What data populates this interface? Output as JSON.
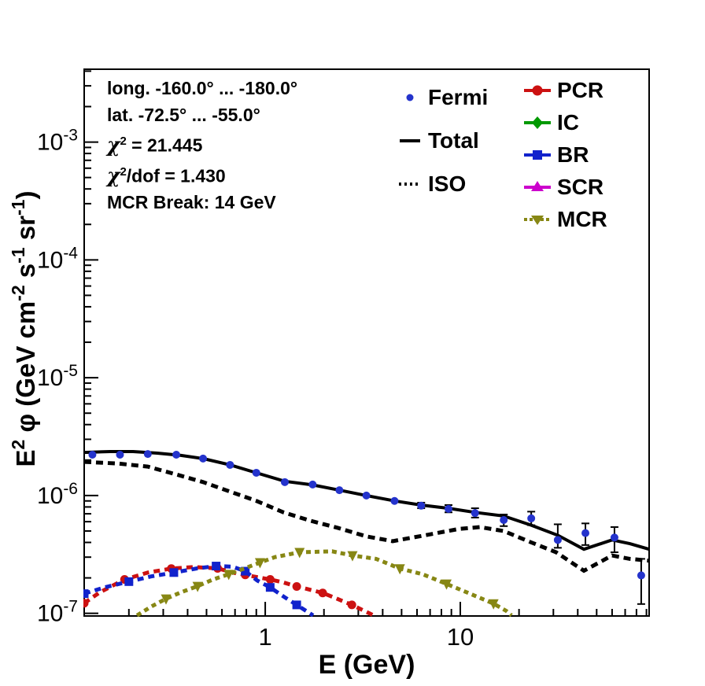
{
  "figure": {
    "background": "#ffffff",
    "stats": {
      "line1": "long. -160.0° ... -180.0°",
      "line2": "lat. -72.5° ... -55.0°",
      "chi2": {
        "sym": "χ",
        "sup": "2",
        "rest": " = 21.445"
      },
      "chi2dof": {
        "sym": "χ",
        "sup": "2",
        "rest": "/dof = 1.430"
      },
      "line5": "MCR Break: 14 GeV"
    }
  },
  "axes": {
    "x_title": "E (GeV)",
    "y_title_parts": [
      {
        "t": "E"
      },
      {
        "t": "2",
        "sup": true
      },
      {
        "t": " φ (GeV cm"
      },
      {
        "t": "-2",
        "sup": true
      },
      {
        "t": " s"
      },
      {
        "t": "-1",
        "sup": true
      },
      {
        "t": " sr"
      },
      {
        "t": "-1",
        "sup": true
      },
      {
        "t": ")"
      }
    ],
    "x_ticks": [
      {
        "v": 1,
        "label": "1"
      },
      {
        "v": 10,
        "label": "10"
      }
    ],
    "y_ticks": [
      {
        "v": 0.001,
        "base": "10",
        "exp": "-3"
      },
      {
        "v": 0.0001,
        "base": "10",
        "exp": "-4"
      },
      {
        "v": 1e-05,
        "base": "10",
        "exp": "-5"
      },
      {
        "v": 1e-06,
        "base": "10",
        "exp": "-6"
      },
      {
        "v": 1e-07,
        "base": "10",
        "exp": "-7"
      }
    ]
  },
  "chart_data": {
    "type": "line",
    "x_scale": "log",
    "y_scale": "log",
    "xlabel": "E (GeV)",
    "ylabel": "E^2 phi (GeV cm^-2 s^-1 sr^-1)",
    "xlim": [
      0.118,
      92.9
    ],
    "ylim": [
      9.5e-08,
      0.00415
    ],
    "grid": false,
    "legend_position": "top",
    "series": [
      {
        "name": "Fermi",
        "type": "scatter",
        "color": "#2433cc",
        "marker": "circle",
        "marker_size": 10,
        "line": "none",
        "points": [
          [
            0.13,
            2.22e-06,
            null,
            null
          ],
          [
            0.18,
            2.22e-06,
            null,
            null
          ],
          [
            0.25,
            2.25e-06,
            null,
            null
          ],
          [
            0.35,
            2.22e-06,
            null,
            null
          ],
          [
            0.48,
            2.06e-06,
            null,
            null
          ],
          [
            0.66,
            1.82e-06,
            null,
            null
          ],
          [
            0.9,
            1.56e-06,
            null,
            null
          ],
          [
            1.26,
            1.3e-06,
            null,
            null
          ],
          [
            1.75,
            1.24e-06,
            null,
            null
          ],
          [
            2.4,
            1.11e-06,
            null,
            null
          ],
          [
            3.3,
            1e-06,
            null,
            null
          ],
          [
            4.6,
            9e-07,
            null,
            null
          ],
          [
            6.3,
            8.2e-07,
            7.8e-07,
            8.7e-07
          ],
          [
            8.7,
            7.7e-07,
            7.2e-07,
            8.3e-07
          ],
          [
            11.9,
            7.1e-07,
            6.5e-07,
            7.8e-07
          ],
          [
            16.7,
            6.2e-07,
            5.5e-07,
            6.9e-07
          ],
          [
            23.1,
            6.4e-07,
            5.6e-07,
            7.3e-07
          ],
          [
            31.6,
            4.2e-07,
            3.6e-07,
            5.7e-07
          ],
          [
            43.8,
            4.8e-07,
            3.8e-07,
            5.8e-07
          ],
          [
            61.7,
            4.4e-07,
            3.3e-07,
            5.4e-07
          ],
          [
            84.6,
            2.1e-07,
            1.2e-07,
            2.9e-07
          ]
        ]
      },
      {
        "name": "Total",
        "type": "line",
        "color": "#000000",
        "marker": "none",
        "line": "solid",
        "width": 4,
        "dash": null,
        "points": [
          [
            0.118,
            2.32e-06
          ],
          [
            0.16,
            2.36e-06
          ],
          [
            0.21,
            2.36e-06
          ],
          [
            0.28,
            2.29e-06
          ],
          [
            0.37,
            2.19e-06
          ],
          [
            0.48,
            2.06e-06
          ],
          [
            0.66,
            1.82e-06
          ],
          [
            0.9,
            1.56e-06
          ],
          [
            1.26,
            1.32e-06
          ],
          [
            1.75,
            1.23e-06
          ],
          [
            2.4,
            1.11e-06
          ],
          [
            3.3,
            1e-06
          ],
          [
            4.6,
            9e-07
          ],
          [
            6.3,
            8.3e-07
          ],
          [
            8.7,
            7.8e-07
          ],
          [
            11.9,
            7.2e-07
          ],
          [
            16.7,
            6.7e-07
          ],
          [
            23.1,
            5.6e-07
          ],
          [
            31.6,
            4.6e-07
          ],
          [
            43.0,
            3.5e-07
          ],
          [
            60.0,
            4.2e-07
          ],
          [
            74.0,
            3.9e-07
          ],
          [
            93.0,
            3.5e-07
          ]
        ]
      },
      {
        "name": "ISO",
        "type": "line",
        "color": "#000000",
        "marker": "none",
        "line": "dash",
        "width": 5,
        "dash": [
          9,
          6
        ],
        "points": [
          [
            0.118,
            1.93e-06
          ],
          [
            0.176,
            1.87e-06
          ],
          [
            0.25,
            1.76e-06
          ],
          [
            0.35,
            1.51e-06
          ],
          [
            0.48,
            1.3e-06
          ],
          [
            0.66,
            1.08e-06
          ],
          [
            0.9,
            9e-07
          ],
          [
            1.24,
            7.2e-07
          ],
          [
            1.71,
            6.1e-07
          ],
          [
            2.37,
            5.3e-07
          ],
          [
            3.3,
            4.5e-07
          ],
          [
            4.5,
            4.1e-07
          ],
          [
            6.6,
            4.6e-07
          ],
          [
            9.8,
            5.2e-07
          ],
          [
            12.6,
            5.4e-07
          ],
          [
            16.7,
            5e-07
          ],
          [
            23.1,
            4e-07
          ],
          [
            31.0,
            3.3e-07
          ],
          [
            43.0,
            2.3e-07
          ],
          [
            60.0,
            3.1e-07
          ],
          [
            74.0,
            2.9e-07
          ],
          [
            93.0,
            2.8e-07
          ]
        ]
      },
      {
        "name": "PCR",
        "type": "line",
        "color": "#cc1111",
        "marker": "circle",
        "marker_size": 11,
        "marker_every": 2,
        "line": "dash",
        "width": 5,
        "dash": [
          8,
          6
        ],
        "points": [
          [
            0.118,
            1.22e-07
          ],
          [
            0.142,
            1.51e-07
          ],
          [
            0.19,
            1.94e-07
          ],
          [
            0.25,
            2.22e-07
          ],
          [
            0.33,
            2.4e-07
          ],
          [
            0.43,
            2.47e-07
          ],
          [
            0.57,
            2.41e-07
          ],
          [
            0.68,
            2.22e-07
          ],
          [
            0.79,
            2.12e-07
          ],
          [
            0.91,
            2.03e-07
          ],
          [
            1.06,
            1.94e-07
          ],
          [
            1.24,
            1.83e-07
          ],
          [
            1.45,
            1.69e-07
          ],
          [
            1.64,
            1.61e-07
          ],
          [
            1.97,
            1.49e-07
          ],
          [
            2.31,
            1.34e-07
          ],
          [
            2.78,
            1.18e-07
          ],
          [
            3.38,
            1.01e-07
          ],
          [
            3.6,
            9.6e-08
          ]
        ]
      },
      {
        "name": "IC",
        "type": "line",
        "color": "#009900",
        "marker": "diamond",
        "marker_size": 11,
        "line": "solid",
        "width": 4,
        "dash": null,
        "points": []
      },
      {
        "name": "BR",
        "type": "line",
        "color": "#1122cc",
        "marker": "square",
        "marker_size": 11,
        "marker_every": 2,
        "line": "dash",
        "width": 5,
        "dash": [
          8,
          6
        ],
        "points": [
          [
            0.118,
            1.47e-07
          ],
          [
            0.15,
            1.66e-07
          ],
          [
            0.2,
            1.86e-07
          ],
          [
            0.26,
            2.06e-07
          ],
          [
            0.34,
            2.22e-07
          ],
          [
            0.45,
            2.41e-07
          ],
          [
            0.56,
            2.52e-07
          ],
          [
            0.68,
            2.49e-07
          ],
          [
            0.79,
            2.28e-07
          ],
          [
            0.91,
            1.9e-07
          ],
          [
            1.06,
            1.66e-07
          ],
          [
            1.24,
            1.39e-07
          ],
          [
            1.45,
            1.18e-07
          ],
          [
            1.76,
            9.6e-08
          ]
        ]
      },
      {
        "name": "SCR",
        "type": "line",
        "color": "#cc00cc",
        "marker": "tri_up",
        "marker_size": 11,
        "line": "solid",
        "width": 4,
        "dash": null,
        "points": []
      },
      {
        "name": "MCR",
        "type": "line",
        "color": "#878714",
        "marker": "tri_down",
        "marker_size": 13,
        "marker_every": 2,
        "line": "dash",
        "width": 5,
        "dash": [
          6,
          5
        ],
        "points": [
          [
            0.22,
            9.6e-08
          ],
          [
            0.26,
            1.14e-07
          ],
          [
            0.31,
            1.33e-07
          ],
          [
            0.37,
            1.51e-07
          ],
          [
            0.45,
            1.7e-07
          ],
          [
            0.54,
            1.94e-07
          ],
          [
            0.65,
            2.15e-07
          ],
          [
            0.78,
            2.4e-07
          ],
          [
            0.94,
            2.7e-07
          ],
          [
            1.12,
            3e-07
          ],
          [
            1.5,
            3.3e-07
          ],
          [
            2.2,
            3.36e-07
          ],
          [
            2.8,
            3.1e-07
          ],
          [
            3.7,
            2.9e-07
          ],
          [
            4.9,
            2.4e-07
          ],
          [
            6.4,
            2.15e-07
          ],
          [
            8.5,
            1.78e-07
          ],
          [
            11.2,
            1.47e-07
          ],
          [
            14.8,
            1.21e-07
          ],
          [
            17.2,
            1.05e-07
          ],
          [
            18.3,
            9.6e-08
          ]
        ]
      }
    ]
  }
}
